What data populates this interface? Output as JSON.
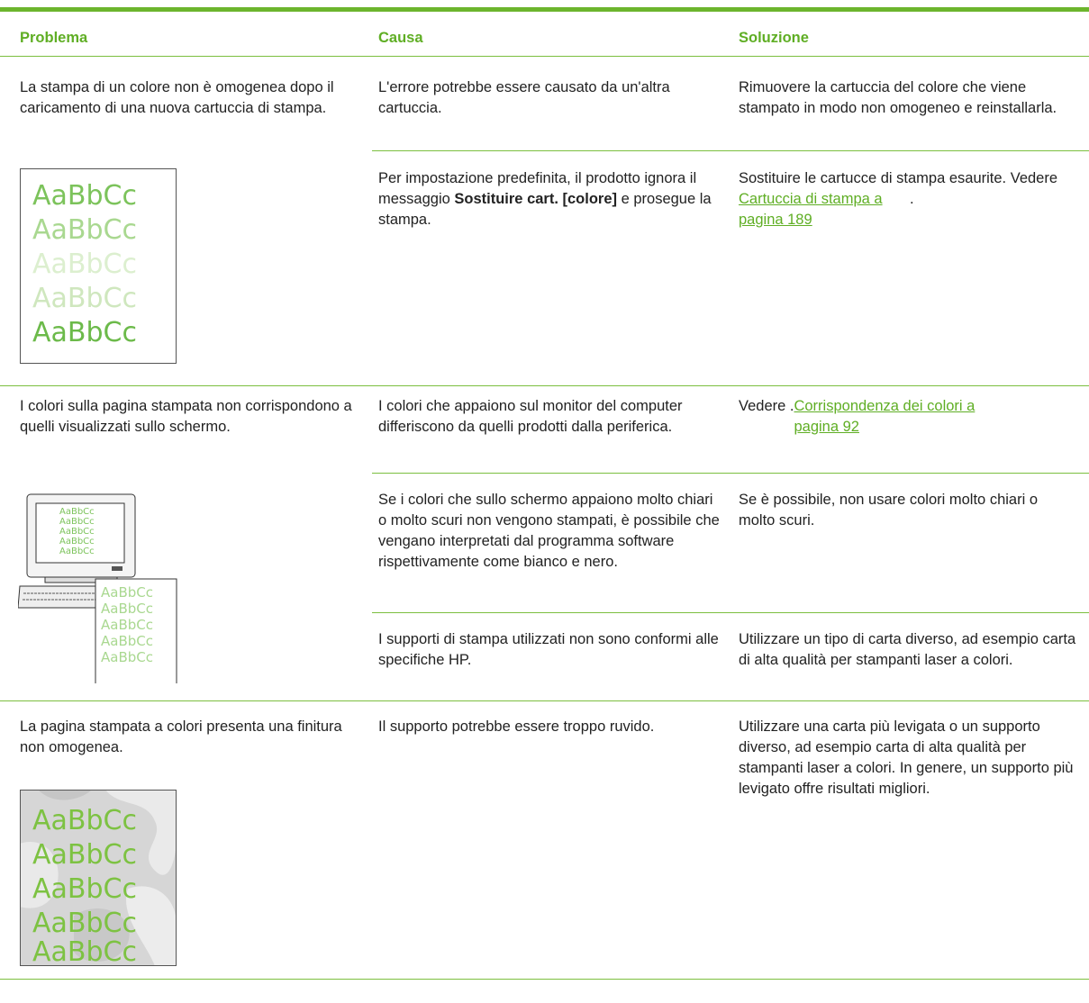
{
  "table": {
    "headers": [
      "Problema",
      "Causa",
      "Soluzione"
    ],
    "rows": [
      {
        "problem": "La stampa di un colore non è omogenea dopo il caricamento di una nuova cartuccia di stampa.",
        "illustration": [
          "AaBbCc",
          "AaBbCc",
          "AaBbCc",
          "AaBbCc",
          "AaBbCc"
        ],
        "causes": [
          {
            "cause": [
              "L'errore potrebbe essere causato da un'altra cartuccia."
            ],
            "solution": [
              "Rimuovere la cartuccia del colore che viene stampato in modo non omogeneo e reinstallarla."
            ]
          },
          {
            "cause": [
              "Per impostazione predefinita, il prodotto ignora il messaggio ",
              "Sostituire cart. [colore]",
              " e prosegue la stampa."
            ],
            "solution": [
              "Sostituire le cartucce di stampa esaurite. Vedere ",
              "Cartuccia di stampa a pagina 189",
              "."
            ]
          }
        ]
      },
      {
        "problem": "I colori sulla pagina stampata non corrispondono a quelli visualizzati sullo schermo.",
        "illustration_screen": [
          "AaBbCc",
          "AaBbCc",
          "AaBbCc",
          "AaBbCc",
          "AaBbCc"
        ],
        "illustration_paper": [
          "AaBbCc",
          "AaBbCc",
          "AaBbCc",
          "AaBbCc",
          "AaBbCc"
        ],
        "causes": [
          {
            "cause": [
              "I colori che appaiono sul monitor del computer differiscono da quelli prodotti dalla periferica."
            ],
            "solution": [
              "Vedere .",
              "Corrispondenza dei colori a pagina 92"
            ]
          },
          {
            "cause": [
              "Se i colori che sullo schermo appaiono molto chiari o molto scuri non vengono stampati, è possibile che vengano interpretati dal programma software rispettivamente come bianco e nero."
            ],
            "solution": [
              "Se è possibile, non usare colori molto chiari o molto scuri."
            ]
          },
          {
            "cause": [
              "I supporti di stampa utilizzati non sono conformi alle specifiche HP."
            ],
            "solution": [
              "Utilizzare un tipo di carta diverso, ad esempio carta di alta qualità per stampanti laser a colori."
            ]
          }
        ]
      },
      {
        "problem": "La pagina stampata a colori presenta una finitura non omogenea.",
        "illustration": [
          "AaBbCc",
          "AaBbCc",
          "AaBbCc",
          "AaBbCc",
          "AaBbCc"
        ],
        "causes": [
          {
            "cause": [
              "Il supporto potrebbe essere troppo ruvido."
            ],
            "solution": [
              "Utilizzare una carta più levigata o un supporto diverso, ad esempio carta di alta qualità per stampanti laser a colori. In genere, un supporto più levigato offre risultati migliori."
            ]
          }
        ]
      }
    ]
  }
}
